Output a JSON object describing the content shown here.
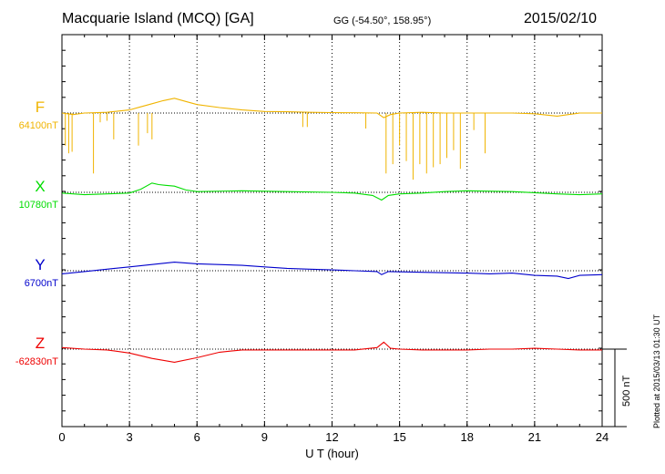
{
  "header": {
    "title": "Macquarie Island (MCQ)  [GA]",
    "coords": "GG (-54.50°, 158.95°)",
    "date": "2015/02/10"
  },
  "footer": {
    "plotted": "Plotted at 2015/03/13 01:30 UT",
    "scale": "500 nT"
  },
  "chart_data": {
    "type": "line",
    "xlabel": "U T (hour)",
    "xlim": [
      0,
      24
    ],
    "xticks": [
      "0",
      "3",
      "6",
      "9",
      "12",
      "15",
      "18",
      "21",
      "24"
    ],
    "grid": true,
    "scale_bar_nT": 500,
    "series": [
      {
        "name": "F",
        "baseline": "64100nT",
        "color": "#f0b400",
        "values": [
          [
            0,
            0
          ],
          [
            0.5,
            -10
          ],
          [
            1,
            0
          ],
          [
            2,
            5
          ],
          [
            3,
            20
          ],
          [
            3.5,
            40
          ],
          [
            4,
            60
          ],
          [
            4.5,
            80
          ],
          [
            5,
            95
          ],
          [
            5.5,
            75
          ],
          [
            6,
            55
          ],
          [
            7,
            35
          ],
          [
            8,
            20
          ],
          [
            9,
            10
          ],
          [
            10,
            8
          ],
          [
            11,
            5
          ],
          [
            12,
            3
          ],
          [
            13,
            2
          ],
          [
            14,
            0
          ],
          [
            14.3,
            -30
          ],
          [
            14.6,
            -10
          ],
          [
            15,
            0
          ],
          [
            16,
            5
          ],
          [
            17,
            0
          ],
          [
            18,
            0
          ],
          [
            19,
            0
          ],
          [
            20,
            0
          ],
          [
            21,
            -5
          ],
          [
            22,
            -20
          ],
          [
            22.5,
            -10
          ],
          [
            23,
            0
          ],
          [
            24,
            0
          ]
        ],
        "spikes": [
          [
            0.15,
            -210
          ],
          [
            0.3,
            -260
          ],
          [
            0.45,
            -250
          ],
          [
            1.4,
            -390
          ],
          [
            1.7,
            -60
          ],
          [
            2,
            -50
          ],
          [
            2.3,
            -170
          ],
          [
            3.4,
            -210
          ],
          [
            3.8,
            -130
          ],
          [
            4,
            -170
          ],
          [
            10.7,
            -90
          ],
          [
            10.9,
            -90
          ],
          [
            13.5,
            -100
          ],
          [
            14.4,
            -390
          ],
          [
            14.7,
            -330
          ],
          [
            15,
            -210
          ],
          [
            15.3,
            -310
          ],
          [
            15.6,
            -430
          ],
          [
            15.9,
            -330
          ],
          [
            16.2,
            -390
          ],
          [
            16.5,
            -350
          ],
          [
            16.8,
            -330
          ],
          [
            17.1,
            -290
          ],
          [
            17.4,
            -240
          ],
          [
            17.7,
            -360
          ],
          [
            18.3,
            -110
          ],
          [
            18.8,
            -260
          ]
        ]
      },
      {
        "name": "X",
        "baseline": "10780nT",
        "color": "#00dd00",
        "values": [
          [
            0,
            -5
          ],
          [
            1,
            -15
          ],
          [
            2,
            -10
          ],
          [
            3,
            -5
          ],
          [
            3.5,
            20
          ],
          [
            4,
            60
          ],
          [
            4.3,
            50
          ],
          [
            4.6,
            45
          ],
          [
            5,
            40
          ],
          [
            5.5,
            15
          ],
          [
            6,
            5
          ],
          [
            8,
            10
          ],
          [
            10,
            5
          ],
          [
            12,
            0
          ],
          [
            13,
            -5
          ],
          [
            13.8,
            -20
          ],
          [
            14.2,
            -50
          ],
          [
            14.5,
            -20
          ],
          [
            15,
            -10
          ],
          [
            16,
            -5
          ],
          [
            17,
            5
          ],
          [
            18,
            10
          ],
          [
            20,
            5
          ],
          [
            22,
            -10
          ],
          [
            23,
            -15
          ],
          [
            24,
            -10
          ]
        ]
      },
      {
        "name": "Y",
        "baseline": "6700nT",
        "color": "#0000cc",
        "values": [
          [
            0,
            -20
          ],
          [
            1,
            -5
          ],
          [
            2,
            10
          ],
          [
            3,
            25
          ],
          [
            4,
            40
          ],
          [
            5,
            55
          ],
          [
            6,
            45
          ],
          [
            8,
            35
          ],
          [
            9,
            25
          ],
          [
            10,
            15
          ],
          [
            11,
            10
          ],
          [
            12,
            5
          ],
          [
            13,
            0
          ],
          [
            14,
            -5
          ],
          [
            14.2,
            -25
          ],
          [
            14.5,
            -5
          ],
          [
            16,
            -10
          ],
          [
            18,
            -15
          ],
          [
            19,
            -20
          ],
          [
            20,
            -15
          ],
          [
            21,
            -30
          ],
          [
            22,
            -35
          ],
          [
            22.5,
            -50
          ],
          [
            23,
            -30
          ],
          [
            24,
            -25
          ]
        ]
      },
      {
        "name": "Z",
        "baseline": "-62830nT",
        "color": "#ee0000",
        "values": [
          [
            0,
            10
          ],
          [
            1,
            0
          ],
          [
            2,
            -5
          ],
          [
            3,
            -25
          ],
          [
            4,
            -60
          ],
          [
            5,
            -85
          ],
          [
            6,
            -55
          ],
          [
            7,
            -20
          ],
          [
            8,
            -5
          ],
          [
            9,
            -5
          ],
          [
            10,
            -5
          ],
          [
            12,
            -5
          ],
          [
            13,
            -5
          ],
          [
            14,
            10
          ],
          [
            14.3,
            45
          ],
          [
            14.6,
            5
          ],
          [
            15,
            0
          ],
          [
            16,
            -5
          ],
          [
            17,
            -5
          ],
          [
            18,
            -5
          ],
          [
            19,
            0
          ],
          [
            20,
            0
          ],
          [
            21,
            5
          ],
          [
            22,
            0
          ],
          [
            23,
            -5
          ],
          [
            24,
            -5
          ]
        ]
      }
    ]
  }
}
